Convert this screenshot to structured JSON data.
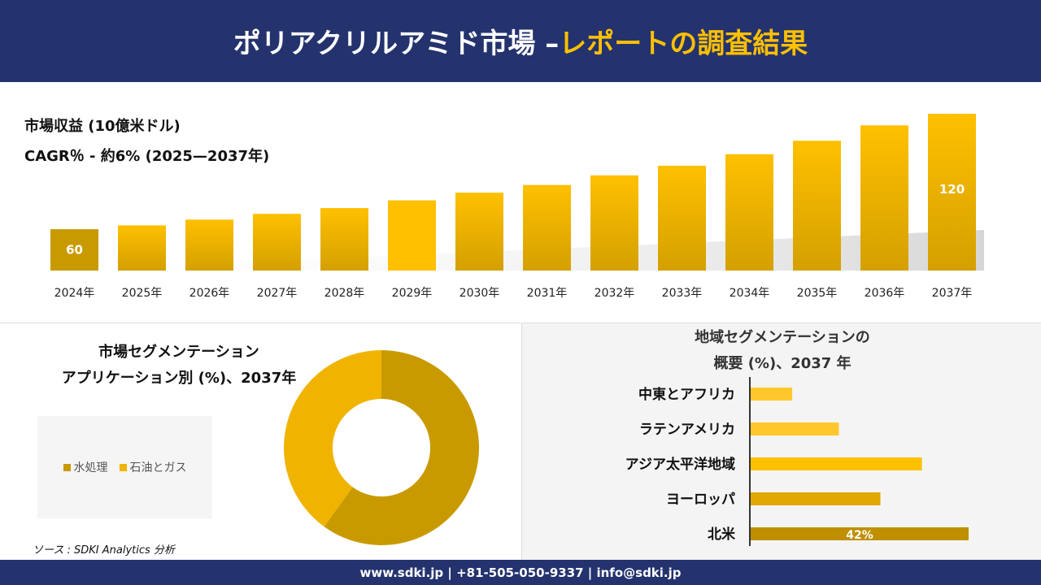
{
  "header": {
    "title_main": "ポリアクリルアミド市場 –",
    "title_accent": "レポートの調査結果"
  },
  "revenue": {
    "label": "市場収益 (10億米ドル)",
    "cagr": "CAGR％ - 約6% (2025—2037年)"
  },
  "chart_data": [
    {
      "type": "bar",
      "categories": [
        "2024年",
        "2025年",
        "2026年",
        "2027年",
        "2028年",
        "2029年",
        "2030年",
        "2031年",
        "2032年",
        "2033年",
        "2034年",
        "2035年",
        "2036年",
        "2037年"
      ],
      "values": [
        60,
        62,
        65,
        68,
        71,
        75,
        79,
        83,
        88,
        93,
        99,
        106,
        114,
        120
      ],
      "data_labels": {
        "0": "60",
        "13": "120"
      },
      "ylabel": "市場収益 (10億米ドル)",
      "grid": false,
      "colors": {
        "base": "#d4a000",
        "highlight": "#ffc000",
        "first": "#c89a00"
      }
    },
    {
      "type": "pie",
      "title": "市場セグメンテーション アプリケーション別 (%)、2037年",
      "title_line1": "市場セグメンテーション",
      "title_line2": "アプリケーション別 (%)、2037年",
      "categories": [
        "水処理",
        "石油とガス"
      ],
      "values": [
        60,
        40
      ],
      "colors": [
        "#c99a00",
        "#f0b400"
      ],
      "legend": "left"
    },
    {
      "type": "bar",
      "orientation": "horizontal",
      "title_line1": "地域セグメンテーションの",
      "title_line2": "概要 (%)、2037 年",
      "categories": [
        "中東とアフリカ",
        "ラテンアメリカ",
        "アジア太平洋地域",
        "ヨーロッパ",
        "北米"
      ],
      "values": [
        8,
        17,
        33,
        25,
        42
      ],
      "data_labels": {
        "4": "42%"
      },
      "colors": [
        "#ffc72c",
        "#ffc72c",
        "#ffc000",
        "#e0a800",
        "#bf8f00"
      ]
    }
  ],
  "source": "ソース : SDKI Analytics 分析",
  "footer": "www.sdki.jp | +81-505-050-9337 | info@sdki.jp"
}
